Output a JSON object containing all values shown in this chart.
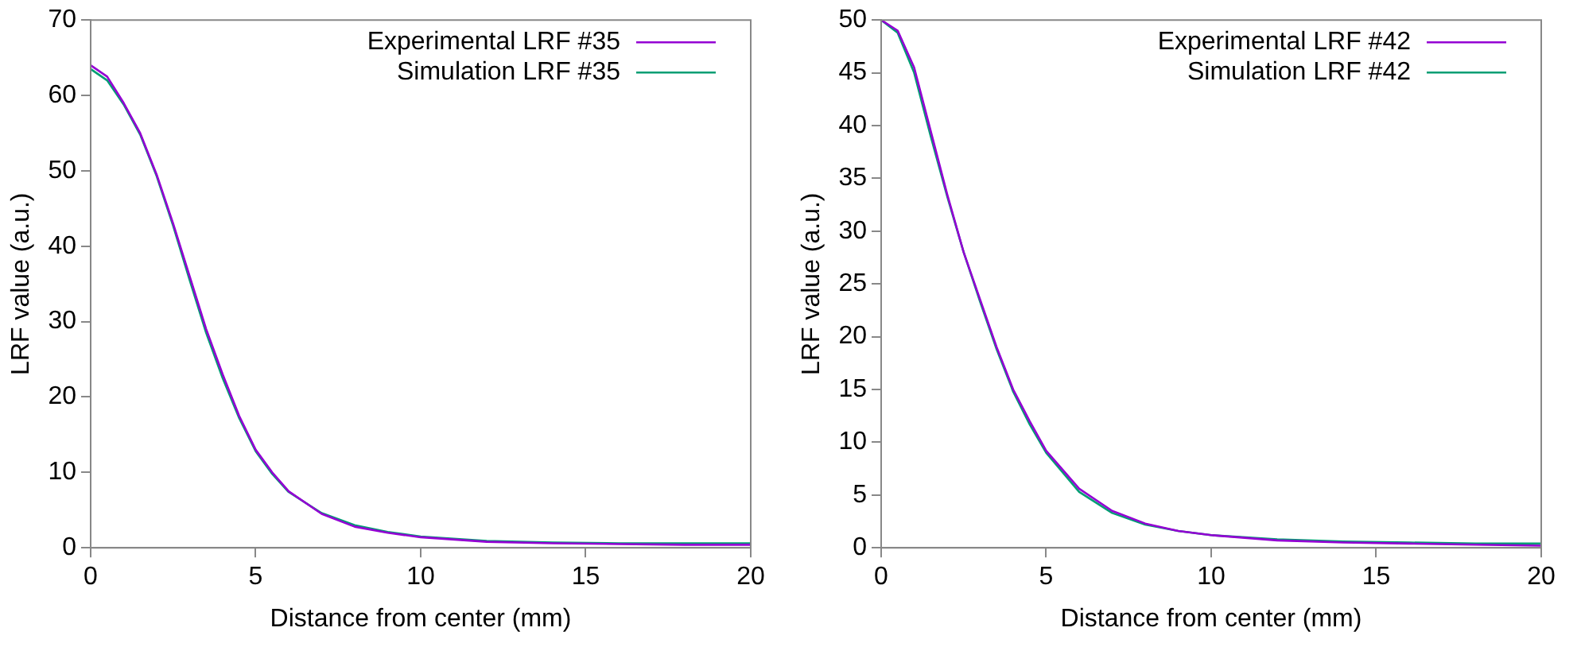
{
  "chart_data": [
    {
      "type": "line",
      "xlabel": "Distance from center (mm)",
      "ylabel": "LRF value (a.u.)",
      "xlim": [
        0,
        20
      ],
      "xticks": [
        0,
        5,
        10,
        15,
        20
      ],
      "ylim": [
        0,
        70
      ],
      "yticks": [
        0,
        10,
        20,
        30,
        40,
        50,
        60,
        70
      ],
      "grid": false,
      "legend": "top right",
      "marker": "none",
      "line_style": "solid",
      "x": [
        0,
        0.5,
        1,
        1.5,
        2,
        2.5,
        3,
        3.5,
        4,
        4.5,
        5,
        5.5,
        6,
        7,
        8,
        9,
        10,
        12,
        14,
        16,
        18,
        20
      ],
      "series": [
        {
          "name": "Experimental LRF #35",
          "color": "#9400d3",
          "values": [
            64,
            62.5,
            59,
            55,
            49.5,
            43,
            36,
            29,
            23,
            17.5,
            13,
            10,
            7.5,
            4.5,
            2.8,
            2,
            1.4,
            0.8,
            0.6,
            0.5,
            0.4,
            0.4
          ]
        },
        {
          "name": "Simulation LRF #35",
          "color": "#009e73",
          "values": [
            63.5,
            62,
            58.8,
            54.8,
            49.3,
            42.7,
            35.5,
            28.5,
            22.5,
            17.2,
            12.8,
            9.8,
            7.4,
            4.6,
            3,
            2.1,
            1.5,
            0.9,
            0.7,
            0.6,
            0.6,
            0.6
          ]
        }
      ]
    },
    {
      "type": "line",
      "xlabel": "Distance from center (mm)",
      "ylabel": "LRF value (a.u.)",
      "xlim": [
        0,
        20
      ],
      "xticks": [
        0,
        5,
        10,
        15,
        20
      ],
      "ylim": [
        0,
        50
      ],
      "yticks": [
        0,
        5,
        10,
        15,
        20,
        25,
        30,
        35,
        40,
        45,
        50
      ],
      "grid": false,
      "legend": "top right",
      "marker": "none",
      "line_style": "solid",
      "x": [
        0,
        0.5,
        1,
        1.5,
        2,
        2.5,
        3,
        3.5,
        4,
        4.5,
        5,
        6,
        7,
        8,
        9,
        10,
        12,
        14,
        16,
        18,
        20
      ],
      "series": [
        {
          "name": "Experimental LRF #42",
          "color": "#9400d3",
          "values": [
            50,
            49,
            45.5,
            39.5,
            33.5,
            28,
            23.5,
            19,
            15,
            12,
            9.2,
            5.6,
            3.5,
            2.3,
            1.6,
            1.2,
            0.7,
            0.5,
            0.4,
            0.3,
            0.2
          ]
        },
        {
          "name": "Simulation LRF #42",
          "color": "#009e73",
          "values": [
            50,
            48.8,
            45,
            39,
            33.3,
            28,
            23.3,
            18.8,
            14.8,
            11.7,
            9,
            5.3,
            3.3,
            2.2,
            1.6,
            1.2,
            0.8,
            0.6,
            0.5,
            0.4,
            0.4
          ]
        }
      ]
    }
  ]
}
